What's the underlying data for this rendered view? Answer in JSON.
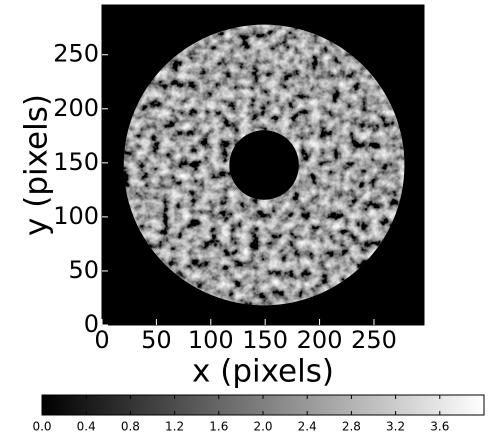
{
  "chart_data": {
    "type": "image",
    "xlabel": "x (pixels)",
    "ylabel": "y (pixels)",
    "xlim": [
      0,
      296
    ],
    "ylim": [
      0,
      296
    ],
    "xticks": [
      0,
      50,
      100,
      150,
      200,
      250
    ],
    "yticks": [
      0,
      50,
      100,
      150,
      200,
      250
    ],
    "annulus": {
      "center": [
        149,
        148
      ],
      "outer_radius": 129,
      "inner_radius": 32
    },
    "colormap": "gray",
    "colorbar": {
      "lim": [
        0,
        4.0
      ],
      "ticks": [
        {
          "value": 0,
          "label": "0.0"
        },
        0.4,
        0.8,
        1.2,
        1.6,
        {
          "value": 2,
          "label": "2.0"
        },
        2.4,
        2.8,
        3.2,
        3.6
      ]
    }
  }
}
